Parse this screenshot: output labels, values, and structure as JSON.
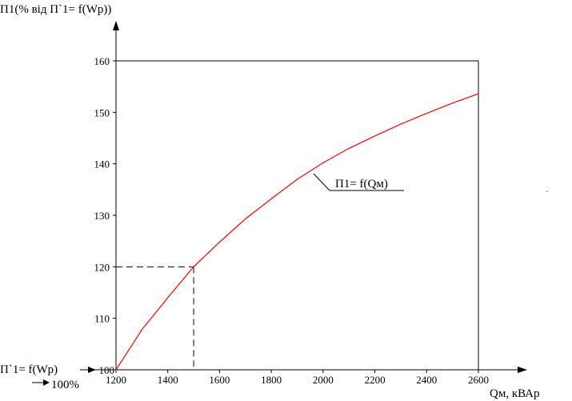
{
  "chart_data": {
    "type": "line",
    "ylabel": "П1(% від П`1= f(Wp))",
    "xlabel": "Qм, кВАр",
    "x_ticks": [
      1200,
      1400,
      1600,
      1800,
      2000,
      2200,
      2400,
      2600
    ],
    "y_ticks": [
      100,
      110,
      120,
      130,
      140,
      150,
      160
    ],
    "xlim": [
      1200,
      2600
    ],
    "ylim": [
      100,
      160
    ],
    "grid": false,
    "series": [
      {
        "name": "П1= f(Qм)",
        "color": "#ff0000",
        "x": [
          1200,
          1300,
          1400,
          1500,
          1600,
          1700,
          1800,
          1900,
          2000,
          2100,
          2200,
          2300,
          2400,
          2500,
          2600
        ],
        "y": [
          100,
          107.8,
          114,
          120,
          124.8,
          129.3,
          133.2,
          137,
          140.2,
          143,
          145.4,
          147.7,
          149.8,
          151.8,
          153.6
        ]
      }
    ],
    "annotations": {
      "reference_label": "П`1= f(Wp)",
      "reference_value": "100%",
      "highlight_point": {
        "x": 1500,
        "y": 120
      }
    }
  }
}
